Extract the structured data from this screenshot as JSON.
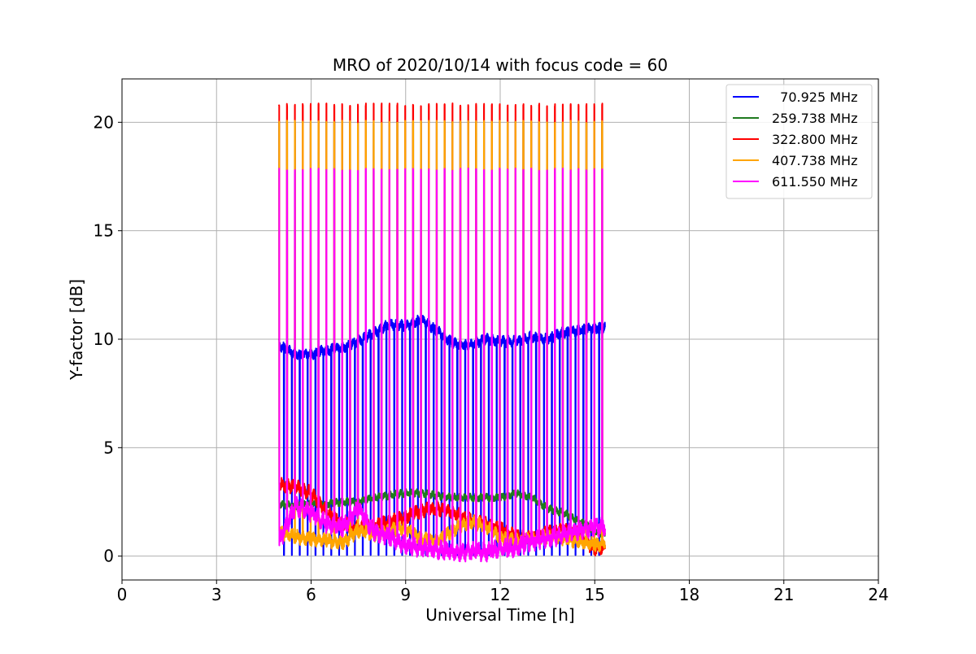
{
  "chart_data": {
    "type": "line",
    "title": "MRO of 2020/10/14 with focus code = 60",
    "xlabel": "Universal Time [h]",
    "ylabel": "Y-factor [dB]",
    "xlim": [
      0,
      24
    ],
    "ylim": [
      -1.1,
      22
    ],
    "xticks": [
      0,
      3,
      6,
      9,
      12,
      15,
      18,
      21,
      24
    ],
    "yticks": [
      0,
      5,
      10,
      15,
      20
    ],
    "grid": true,
    "legend_position": "top-right",
    "data_time_range": [
      4.98,
      15.33
    ],
    "calibration_spike_period_h": 0.25,
    "series": [
      {
        "name": "  70.925 MHz",
        "color": "#0000ff",
        "spike_peak": 10.0,
        "spike_dip": 0.05,
        "baseline": {
          "x": [
            5.0,
            5.5,
            6.0,
            6.5,
            7.0,
            7.5,
            8.0,
            8.5,
            9.0,
            9.5,
            10.0,
            10.5,
            11.0,
            11.5,
            12.0,
            12.5,
            13.0,
            13.5,
            14.0,
            14.5,
            15.0,
            15.3
          ],
          "values": [
            9.7,
            9.3,
            9.3,
            9.5,
            9.6,
            9.9,
            10.3,
            10.7,
            10.6,
            10.9,
            10.4,
            9.8,
            9.7,
            10.0,
            9.9,
            9.9,
            10.1,
            10.0,
            10.3,
            10.4,
            10.5,
            10.5
          ]
        }
      },
      {
        "name": "259.738 MHz",
        "color": "#1f7a1f",
        "spike_peak": 20.0,
        "baseline": {
          "x": [
            5.0,
            5.5,
            6.0,
            6.5,
            7.0,
            7.5,
            8.0,
            8.5,
            9.0,
            9.5,
            10.0,
            10.5,
            11.0,
            11.5,
            12.0,
            12.5,
            13.0,
            13.5,
            14.0,
            14.5,
            15.0,
            15.3
          ],
          "values": [
            2.4,
            2.3,
            2.4,
            2.4,
            2.5,
            2.5,
            2.7,
            2.8,
            2.9,
            2.9,
            2.8,
            2.7,
            2.7,
            2.7,
            2.7,
            2.9,
            2.7,
            2.2,
            2.0,
            1.6,
            1.2,
            1.0
          ]
        }
      },
      {
        "name": "322.800 MHz",
        "color": "#ff0000",
        "spike_peak": 20.8,
        "baseline": {
          "x": [
            5.0,
            5.5,
            6.0,
            6.5,
            7.0,
            7.5,
            8.0,
            8.5,
            9.0,
            9.5,
            10.0,
            10.5,
            11.0,
            11.5,
            12.0,
            12.5,
            13.0,
            13.5,
            14.0,
            14.5,
            15.0,
            15.3
          ],
          "values": [
            3.3,
            3.2,
            2.9,
            2.0,
            1.5,
            1.3,
            1.4,
            1.6,
            1.8,
            2.1,
            2.2,
            2.0,
            1.7,
            1.5,
            1.3,
            0.9,
            0.8,
            1.1,
            1.2,
            1.0,
            0.3,
            0.4
          ]
        }
      },
      {
        "name": "407.738 MHz",
        "color": "#ffa500",
        "spike_peak": 20.0,
        "baseline": {
          "x": [
            5.0,
            5.5,
            6.0,
            6.5,
            7.0,
            7.5,
            8.0,
            8.5,
            9.0,
            9.5,
            10.0,
            10.5,
            11.0,
            11.5,
            12.0,
            12.5,
            13.0,
            13.5,
            14.0,
            14.5,
            15.0,
            15.3
          ],
          "values": [
            1.1,
            0.9,
            0.8,
            0.7,
            0.6,
            1.2,
            1.0,
            1.2,
            1.3,
            0.8,
            0.7,
            1.2,
            1.6,
            1.4,
            0.9,
            0.7,
            0.8,
            0.9,
            0.8,
            0.7,
            0.5,
            0.6
          ]
        }
      },
      {
        "name": "611.550 MHz",
        "color": "#ff00ff",
        "spike_peak": 17.8,
        "baseline": {
          "x": [
            5.0,
            5.5,
            6.0,
            6.5,
            7.0,
            7.5,
            8.0,
            8.5,
            9.0,
            9.5,
            10.0,
            10.5,
            11.0,
            11.5,
            12.0,
            12.5,
            13.0,
            13.5,
            14.0,
            14.5,
            15.0,
            15.3
          ],
          "values": [
            0.7,
            2.3,
            2.0,
            1.5,
            1.3,
            2.2,
            1.1,
            0.9,
            0.5,
            0.4,
            0.3,
            0.2,
            0.2,
            0.2,
            0.3,
            0.4,
            0.7,
            0.8,
            1.0,
            1.2,
            1.3,
            1.4
          ]
        }
      }
    ]
  }
}
